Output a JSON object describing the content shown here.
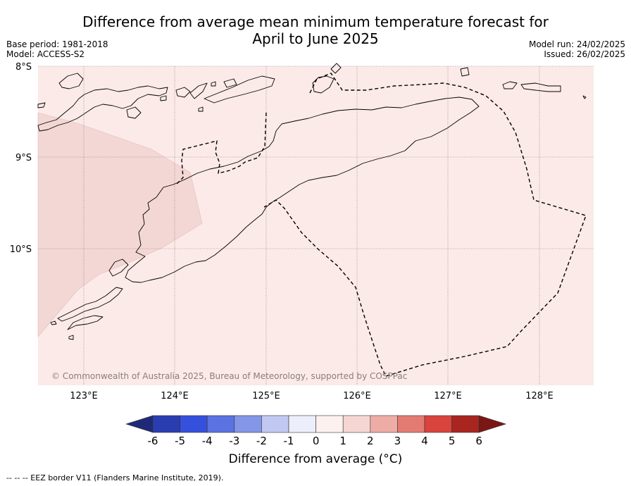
{
  "title": {
    "line1": "Difference from average mean minimum temperature forecast for",
    "line2": "April to June 2025"
  },
  "info_left": {
    "base_period": "Base period: 1981-2018",
    "model": "Model: ACCESS-S2"
  },
  "info_right": {
    "model_run": "Model run: 24/02/2025",
    "issued": "Issued: 26/02/2025"
  },
  "map": {
    "lat_labels": [
      "8°S",
      "9°S",
      "10°S"
    ],
    "lon_labels": [
      "123°E",
      "124°E",
      "125°E",
      "126°E",
      "127°E",
      "128°E"
    ],
    "gridlines": true,
    "background_color": "#fbeae8",
    "shaded_region_color": "#f3d7d4",
    "coastline_color": "#000000",
    "eez_border_style": "dashed",
    "copyright": "© Commonwealth of Australia 2025, Bureau of Meteorology, supported by COSPPac"
  },
  "colorbar": {
    "ticks": [
      "-6",
      "-5",
      "-4",
      "-3",
      "-2",
      "-1",
      "0",
      "1",
      "2",
      "3",
      "4",
      "5",
      "6"
    ],
    "colors": [
      "#1e2a78",
      "#2a3db0",
      "#3550dc",
      "#5a72e2",
      "#8496e8",
      "#c1c9f2",
      "#eceffb",
      "#fdf1f0",
      "#f6d6d2",
      "#eeaca6",
      "#e47b73",
      "#d9443c",
      "#a9251f",
      "#7a1716"
    ],
    "label": "Difference from average (°C)"
  },
  "legend_footnote": "-- -- -- EEZ border V11 (Flanders Marine Institute, 2019)."
}
